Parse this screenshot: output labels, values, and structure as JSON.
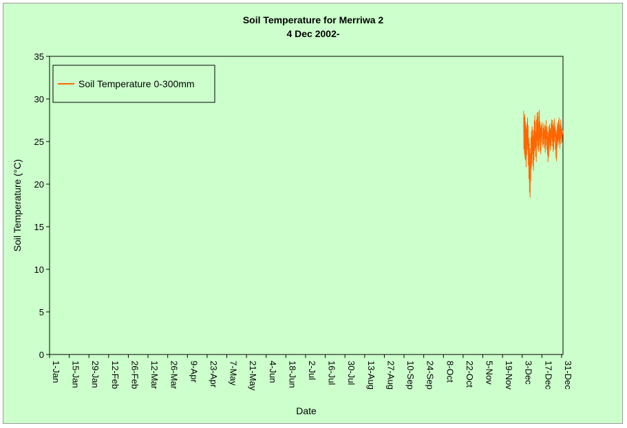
{
  "chart_data": {
    "type": "line",
    "title": "Soil Temperature for Merriwa 2",
    "subtitle": "4 Dec 2002-",
    "xlabel": "Date",
    "ylabel": "Soil Temperature (°C)",
    "ylim": [
      0,
      35
    ],
    "yticks": [
      0,
      5,
      10,
      15,
      20,
      25,
      30,
      35
    ],
    "xlim_day": [
      1,
      366
    ],
    "xticks": [
      {
        "label": "1-Jan",
        "day": 1
      },
      {
        "label": "15-Jan",
        "day": 15
      },
      {
        "label": "29-Jan",
        "day": 29
      },
      {
        "label": "12-Feb",
        "day": 43
      },
      {
        "label": "26-Feb",
        "day": 57
      },
      {
        "label": "12-Mar",
        "day": 71
      },
      {
        "label": "26-Mar",
        "day": 85
      },
      {
        "label": "9-Apr",
        "day": 99
      },
      {
        "label": "23-Apr",
        "day": 113
      },
      {
        "label": "7-May",
        "day": 127
      },
      {
        "label": "21-May",
        "day": 141
      },
      {
        "label": "4-Jun",
        "day": 155
      },
      {
        "label": "18-Jun",
        "day": 169
      },
      {
        "label": "2-Jul",
        "day": 183
      },
      {
        "label": "16-Jul",
        "day": 197
      },
      {
        "label": "30-Jul",
        "day": 211
      },
      {
        "label": "13-Aug",
        "day": 225
      },
      {
        "label": "27-Aug",
        "day": 239
      },
      {
        "label": "10-Sep",
        "day": 253
      },
      {
        "label": "24-Sep",
        "day": 267
      },
      {
        "label": "8-Oct",
        "day": 281
      },
      {
        "label": "22-Oct",
        "day": 295
      },
      {
        "label": "5-Nov",
        "day": 309
      },
      {
        "label": "19-Nov",
        "day": 323
      },
      {
        "label": "3-Dec",
        "day": 337
      },
      {
        "label": "17-Dec",
        "day": 351
      },
      {
        "label": "31-Dec",
        "day": 365
      }
    ],
    "grid": false,
    "legend_position": "top-left",
    "series": [
      {
        "name": "Soil Temperature  0-300mm",
        "color": "#ff6600",
        "x_day": [
          338.0,
          338.2,
          338.4,
          338.6,
          338.8,
          339.0,
          339.2,
          339.4,
          339.6,
          339.8,
          340.0,
          340.2,
          340.4,
          340.6,
          340.8,
          341.0,
          341.2,
          341.4,
          341.6,
          341.8,
          342.0,
          342.2,
          342.4,
          342.6,
          342.8,
          343.0,
          343.2,
          343.4,
          343.6,
          343.8,
          344.0,
          344.2,
          344.4,
          344.6,
          344.8,
          345.0,
          345.2,
          345.4,
          345.6,
          345.8,
          346.0,
          346.2,
          346.4,
          346.6,
          346.8,
          347.0,
          347.2,
          347.4,
          347.6,
          347.8,
          348.0,
          348.2,
          348.4,
          348.6,
          348.8,
          349.0,
          349.2,
          349.4,
          349.6,
          349.8,
          350.0,
          350.2,
          350.4,
          350.6,
          350.8,
          351.0,
          351.2,
          351.4,
          351.6,
          351.8,
          352.0,
          352.2,
          352.4,
          352.6,
          352.8,
          353.0,
          353.2,
          353.4,
          353.6,
          353.8,
          354.0,
          354.2,
          354.4,
          354.6,
          354.8,
          355.0,
          355.2,
          355.4,
          355.6,
          355.8,
          356.0,
          356.2,
          356.4,
          356.6,
          356.8,
          357.0,
          357.2,
          357.4,
          357.6,
          357.8,
          358.0,
          358.2,
          358.4,
          358.6,
          358.8,
          359.0,
          359.2,
          359.4,
          359.6,
          359.8,
          360.0,
          360.2,
          360.4,
          360.6,
          360.8,
          361.0,
          361.2,
          361.4,
          361.6,
          361.8,
          362.0,
          362.2,
          362.4,
          362.6,
          362.8,
          363.0,
          363.2,
          363.4,
          363.6,
          363.8,
          364.0,
          364.2,
          364.4,
          364.6,
          364.8,
          365.0,
          365.2,
          365.4,
          365.6,
          365.8,
          366.0
        ],
        "y": [
          28.6,
          24.1,
          27.9,
          23.5,
          28.2,
          23.0,
          27.4,
          22.8,
          26.9,
          22.0,
          26.5,
          23.4,
          27.2,
          24.0,
          27.8,
          24.6,
          26.9,
          22.2,
          25.4,
          20.6,
          24.8,
          19.0,
          24.2,
          18.4,
          23.6,
          20.3,
          25.5,
          21.8,
          26.2,
          22.4,
          26.8,
          23.5,
          26.4,
          22.1,
          25.7,
          21.6,
          26.3,
          22.8,
          27.5,
          23.9,
          28.1,
          24.3,
          27.3,
          23.2,
          26.1,
          22.6,
          27.6,
          24.4,
          28.4,
          25.1,
          27.9,
          24.1,
          28.5,
          23.8,
          27.2,
          24.6,
          28.7,
          25.3,
          27.4,
          23.9,
          26.6,
          23.5,
          27.0,
          24.9,
          26.8,
          25.7,
          27.3,
          24.6,
          25.9,
          24.3,
          26.6,
          24.7,
          27.1,
          25.3,
          26.8,
          24.2,
          26.4,
          23.7,
          26.9,
          24.5,
          27.5,
          25.2,
          26.7,
          24.0,
          26.2,
          23.4,
          25.6,
          22.6,
          26.1,
          23.2,
          26.8,
          24.3,
          27.0,
          24.9,
          26.4,
          23.9,
          26.6,
          24.5,
          27.2,
          25.4,
          27.6,
          25.0,
          26.9,
          24.4,
          27.5,
          23.8,
          27.1,
          24.1,
          26.6,
          24.9,
          27.7,
          25.5,
          26.8,
          24.0,
          26.3,
          23.1,
          25.9,
          22.7,
          26.4,
          24.3,
          27.2,
          25.0,
          26.9,
          24.6,
          27.5,
          25.2,
          27.8,
          24.8,
          26.6,
          24.2,
          27.1,
          25.3,
          27.6,
          24.7,
          26.8,
          25.6,
          26.5,
          24.9,
          26.0,
          25.8,
          26.3
        ]
      }
    ]
  }
}
